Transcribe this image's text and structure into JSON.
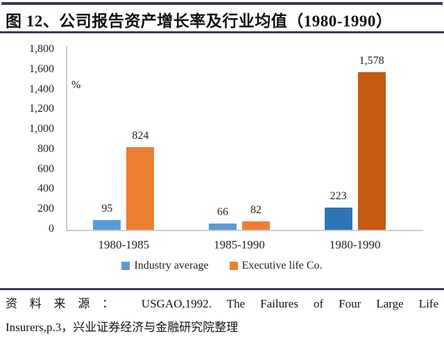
{
  "header": {
    "title": "图 12、公司报告资产增长率及行业均值（1980-1990）"
  },
  "chart_data": {
    "type": "bar",
    "title": "图 12、公司报告资产增长率及行业均值（1980-1990）",
    "unit_label": "%",
    "categories": [
      "1980-1985",
      "1985-1990",
      "1980-1990"
    ],
    "series": [
      {
        "name": "Industry average",
        "values": [
          95,
          66,
          223
        ],
        "colors": [
          "#5B9BD5",
          "#5B9BD5",
          "#2E75B6"
        ],
        "legend_color": "#5B9BD5"
      },
      {
        "name": "Executive life Co.",
        "values": [
          824,
          82,
          1578
        ],
        "colors": [
          "#ED7D31",
          "#ED7D31",
          "#C55A11"
        ],
        "legend_color": "#ED7D31"
      }
    ],
    "value_labels": [
      [
        "95",
        "66",
        "223"
      ],
      [
        "824",
        "82",
        "1,578"
      ]
    ],
    "xlabel": "",
    "ylabel": "%",
    "ylim": [
      0,
      1800
    ],
    "ytick_step": 200,
    "ytick_labels": [
      "0",
      "200",
      "400",
      "600",
      "800",
      "1,000",
      "1,200",
      "1,400",
      "1,600",
      "1,800"
    ],
    "grid": false,
    "legend_position": "bottom"
  },
  "footer": {
    "source_line1": "资料来源： USGAO,1992. The Failures of Four Large Life",
    "source_line2": "Insurers,p.3，兴业证券经济与金融研究院整理"
  },
  "colors": {
    "accent_rule": "#333a56",
    "axis_gray": "#cccccc",
    "bar_blue": "#5B9BD5",
    "bar_blue_dark": "#2E75B6",
    "bar_orange": "#ED7D31",
    "bar_orange_dark": "#C55A11"
  }
}
